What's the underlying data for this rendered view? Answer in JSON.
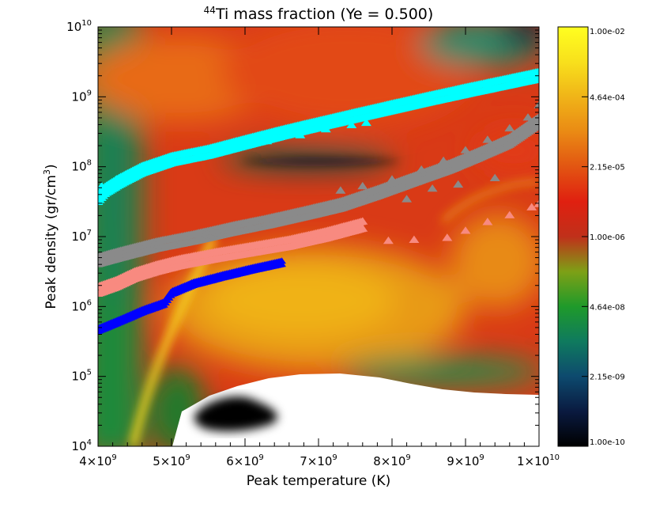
{
  "chart_data": {
    "type": "heatmap",
    "title": {
      "isotope_mass": "44",
      "element": "Ti",
      "rest": " mass fraction (Ye = 0.500)"
    },
    "xlabel": "Peak temperature (K)",
    "ylabel": {
      "main": "Peak density (gr/cm",
      "sup": "3",
      "close": ")"
    },
    "x_scale": "linear",
    "y_scale": "log",
    "xlim": [
      4000000000.0,
      10000000000.0
    ],
    "ylim": [
      10000.0,
      10000000000.0
    ],
    "x_ticks": [
      {
        "value": 4000000000.0,
        "mantissa": "4×10",
        "exp": "9"
      },
      {
        "value": 5000000000.0,
        "mantissa": "5×10",
        "exp": "9"
      },
      {
        "value": 6000000000.0,
        "mantissa": "6×10",
        "exp": "9"
      },
      {
        "value": 7000000000.0,
        "mantissa": "7×10",
        "exp": "9"
      },
      {
        "value": 8000000000.0,
        "mantissa": "8×10",
        "exp": "9"
      },
      {
        "value": 9000000000.0,
        "mantissa": "9×10",
        "exp": "9"
      },
      {
        "value": 10000000000.0,
        "mantissa": "1×10",
        "exp": "10"
      }
    ],
    "y_ticks": [
      {
        "value": 10000.0,
        "base": "10",
        "exp": "4"
      },
      {
        "value": 100000.0,
        "base": "10",
        "exp": "5"
      },
      {
        "value": 1000000.0,
        "base": "10",
        "exp": "6"
      },
      {
        "value": 10000000.0,
        "base": "10",
        "exp": "7"
      },
      {
        "value": 100000000.0,
        "base": "10",
        "exp": "8"
      },
      {
        "value": 1000000000.0,
        "base": "10",
        "exp": "9"
      },
      {
        "value": 10000000000.0,
        "base": "10",
        "exp": "10"
      }
    ],
    "colorbar": {
      "scale": "log",
      "range": [
        1e-10,
        0.01
      ],
      "tick_labels": [
        "1.00e-10",
        "2.15e-09",
        "4.64e-08",
        "1.00e-06",
        "2.15e-05",
        "4.64e-04",
        "1.00e-02"
      ],
      "colors": [
        "#000000",
        "#0a1a40",
        "#0d4a6e",
        "#0f7a5e",
        "#1f9a2a",
        "#7ea016",
        "#c0301a",
        "#e02010",
        "#e25512",
        "#ea8a14",
        "#f0b418",
        "#f8e01c",
        "#ffff20"
      ]
    },
    "series": [
      {
        "marker": "triangle",
        "color": "#00ffff",
        "points": [
          [
            4000000000.0,
            35000000.0
          ],
          [
            4100000000.0,
            46000000.0
          ],
          [
            4300000000.0,
            62000000.0
          ],
          [
            4600000000.0,
            90000000.0
          ],
          [
            5000000000.0,
            125000000.0
          ],
          [
            5500000000.0,
            160000000.0
          ],
          [
            6000000000.0,
            220000000.0
          ],
          [
            6500000000.0,
            300000000.0
          ],
          [
            7000000000.0,
            400000000.0
          ],
          [
            7500000000.0,
            530000000.0
          ],
          [
            8000000000.0,
            700000000.0
          ],
          [
            8500000000.0,
            920000000.0
          ],
          [
            9000000000.0,
            1200000000.0
          ],
          [
            9500000000.0,
            1550000000.0
          ],
          [
            10000000000.0,
            2000000000.0
          ]
        ],
        "scatter_points": [
          [
            4050000000.0,
            52000000.0
          ],
          [
            4250000000.0,
            65000000.0
          ],
          [
            4900000000.0,
            105000000.0
          ],
          [
            5350000000.0,
            145000000.0
          ],
          [
            5800000000.0,
            185000000.0
          ],
          [
            6300000000.0,
            230000000.0
          ],
          [
            6750000000.0,
            280000000.0
          ],
          [
            7100000000.0,
            340000000.0
          ],
          [
            7450000000.0,
            390000000.0
          ],
          [
            7650000000.0,
            420000000.0
          ]
        ]
      },
      {
        "marker": "triangle",
        "color": "#8a8a8a",
        "points": [
          [
            4000000000.0,
            4500000.0
          ],
          [
            4300000000.0,
            5500000.0
          ],
          [
            4800000000.0,
            7500000.0
          ],
          [
            5300000000.0,
            9500000.0
          ],
          [
            5800000000.0,
            12500000.0
          ],
          [
            6300000000.0,
            16000000.0
          ],
          [
            6800000000.0,
            21000000.0
          ],
          [
            7300000000.0,
            28000000.0
          ],
          [
            7800000000.0,
            42000000.0
          ],
          [
            8300000000.0,
            65000000.0
          ],
          [
            8800000000.0,
            100000000.0
          ],
          [
            9200000000.0,
            150000000.0
          ],
          [
            9600000000.0,
            230000000.0
          ],
          [
            10000000000.0,
            450000000.0
          ]
        ],
        "scatter_points": [
          [
            7300000000.0,
            45000000.0
          ],
          [
            7600000000.0,
            52000000.0
          ],
          [
            8000000000.0,
            65000000.0
          ],
          [
            8400000000.0,
            90000000.0
          ],
          [
            8700000000.0,
            120000000.0
          ],
          [
            9000000000.0,
            170000000.0
          ],
          [
            9300000000.0,
            240000000.0
          ],
          [
            9600000000.0,
            350000000.0
          ],
          [
            9850000000.0,
            500000000.0
          ],
          [
            10000000000.0,
            750000000.0
          ],
          [
            8200000000.0,
            34000000.0
          ],
          [
            8550000000.0,
            48000000.0
          ],
          [
            8900000000.0,
            55000000.0
          ],
          [
            9400000000.0,
            68000000.0
          ]
        ]
      },
      {
        "marker": "triangle",
        "color": "#f88a80",
        "points": [
          [
            4000000000.0,
            1700000.0
          ],
          [
            4250000000.0,
            2100000.0
          ],
          [
            4500000000.0,
            2800000.0
          ],
          [
            4800000000.0,
            3500000.0
          ],
          [
            5100000000.0,
            4200000.0
          ],
          [
            5600000000.0,
            5300000.0
          ],
          [
            6100000000.0,
            6500000.0
          ],
          [
            6600000000.0,
            8000000.0
          ],
          [
            7100000000.0,
            10500000.0
          ],
          [
            7600000000.0,
            14500000.0
          ]
        ],
        "scatter_points": [
          [
            7950000000.0,
            8600000.0
          ],
          [
            8300000000.0,
            8900000.0
          ],
          [
            8750000000.0,
            9500000.0
          ],
          [
            9000000000.0,
            12000000.0
          ],
          [
            9300000000.0,
            16000000.0
          ],
          [
            9600000000.0,
            20000000.0
          ],
          [
            9900000000.0,
            26000000.0
          ],
          [
            10000000000.0,
            29000000.0
          ]
        ]
      },
      {
        "marker": "triangle",
        "color": "#0000ff",
        "points": [
          [
            4000000000.0,
            460000.0
          ],
          [
            4300000000.0,
            620000.0
          ],
          [
            4600000000.0,
            850000.0
          ],
          [
            4900000000.0,
            1100000.0
          ],
          [
            5000000000.0,
            1550000.0
          ],
          [
            5300000000.0,
            2100000.0
          ],
          [
            5700000000.0,
            2700000.0
          ],
          [
            6100000000.0,
            3400000.0
          ],
          [
            6500000000.0,
            4200000.0
          ]
        ]
      }
    ]
  }
}
